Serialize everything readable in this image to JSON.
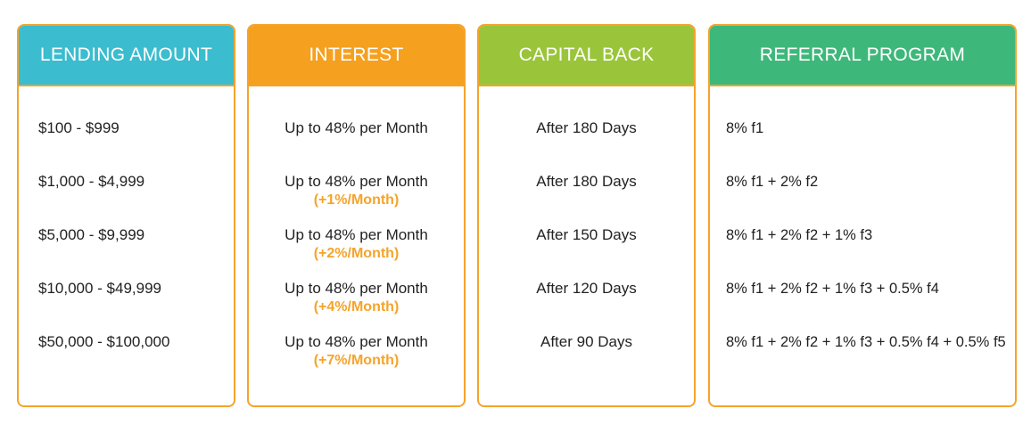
{
  "colors": {
    "border": "#f5a32a",
    "lending_header": "#3bbccf",
    "interest_header": "#f5a01e",
    "capital_header": "#9ac53a",
    "referral_header": "#3db87a",
    "bonus_text": "#f5a32a"
  },
  "columns": [
    {
      "header": "LENDING AMOUNT",
      "rows": [
        {
          "main": "$100 - $999"
        },
        {
          "main": "$1,000 - $4,999"
        },
        {
          "main": "$5,000 - $9,999"
        },
        {
          "main": "$10,000 - $49,999"
        },
        {
          "main": "$50,000 - $100,000"
        }
      ]
    },
    {
      "header": "INTEREST",
      "rows": [
        {
          "main": "Up to 48% per Month",
          "bonus": ""
        },
        {
          "main": "Up to 48% per Month",
          "bonus": "(+1%/Month)"
        },
        {
          "main": "Up to 48% per Month",
          "bonus": "(+2%/Month)"
        },
        {
          "main": "Up to 48% per Month",
          "bonus": "(+4%/Month)"
        },
        {
          "main": "Up to 48% per Month",
          "bonus": "(+7%/Month)"
        }
      ]
    },
    {
      "header": "CAPITAL BACK",
      "rows": [
        {
          "main": "After 180 Days"
        },
        {
          "main": "After 180 Days"
        },
        {
          "main": "After 150 Days"
        },
        {
          "main": "After 120 Days"
        },
        {
          "main": "After 90 Days"
        }
      ]
    },
    {
      "header": "REFERRAL PROGRAM",
      "rows": [
        {
          "main": "8% f1"
        },
        {
          "main": "8% f1 + 2% f2"
        },
        {
          "main": "8% f1 + 2% f2 + 1% f3"
        },
        {
          "main": "8% f1 + 2% f2 + 1% f3 + 0.5% f4"
        },
        {
          "main": "8% f1 + 2% f2 + 1% f3 + 0.5% f4 + 0.5% f5"
        }
      ]
    }
  ]
}
